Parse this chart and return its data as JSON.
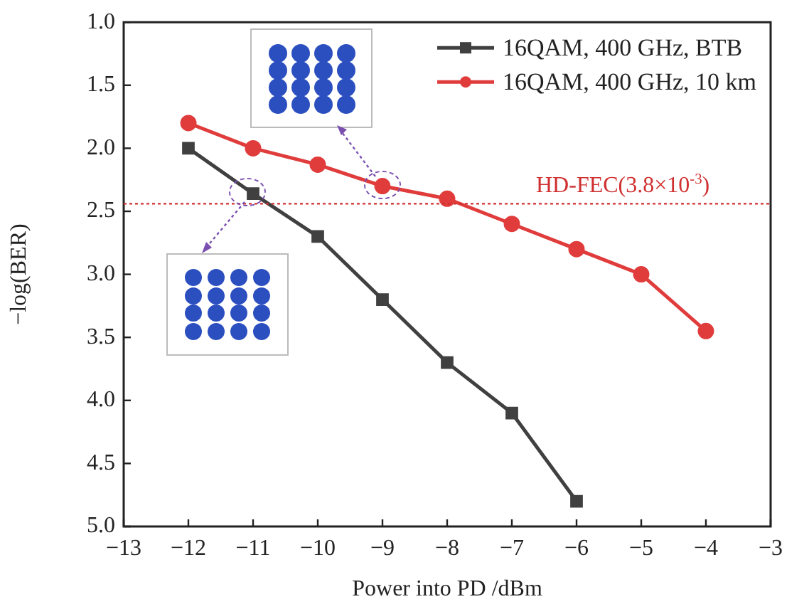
{
  "chart_data": {
    "type": "line",
    "xlabel": "Power into PD /dBm",
    "ylabel": "−log(BER)",
    "x": [
      -12,
      -11,
      -10,
      -9,
      -8,
      -7,
      -6,
      -5,
      -4
    ],
    "series": [
      {
        "name": "16QAM, 400 GHz, BTB",
        "color": "#404040",
        "marker": "square",
        "values": [
          2.0,
          2.36,
          2.7,
          3.2,
          3.7,
          4.1,
          4.8,
          null,
          null
        ]
      },
      {
        "name": "16QAM, 400 GHz, 10 km",
        "color": "#e03c3c",
        "marker": "circle",
        "values": [
          1.8,
          2.0,
          2.13,
          2.3,
          2.4,
          2.6,
          2.8,
          3.0,
          3.45
        ]
      }
    ],
    "xlim": [
      -13,
      -3
    ],
    "xticks": [
      -13,
      -12,
      -11,
      -10,
      -9,
      -8,
      -7,
      -6,
      -5,
      -4,
      -3
    ],
    "ylim": [
      5.0,
      1.0
    ],
    "yticks": [
      {
        "value": 5,
        "label": "5.0"
      },
      {
        "value": 4.5,
        "label": "4.5"
      },
      {
        "value": 4,
        "label": "4.0"
      },
      {
        "value": 3.5,
        "label": "3.5"
      },
      {
        "value": 3,
        "label": "3.0"
      },
      {
        "value": 2.5,
        "label": "2.5"
      },
      {
        "value": 2,
        "label": "2.0"
      },
      {
        "value": 1.5,
        "label": "1.5"
      },
      {
        "value": 1,
        "label": "1.0"
      }
    ],
    "ref_lines": [
      {
        "axis": "y",
        "value": 2.44,
        "label": "HD-FEC(3.8×10$^{-3}$)",
        "color": "#d03030",
        "line_style": "dotted"
      }
    ],
    "grid": false,
    "legend": "top right",
    "line_style": "solid"
  }
}
